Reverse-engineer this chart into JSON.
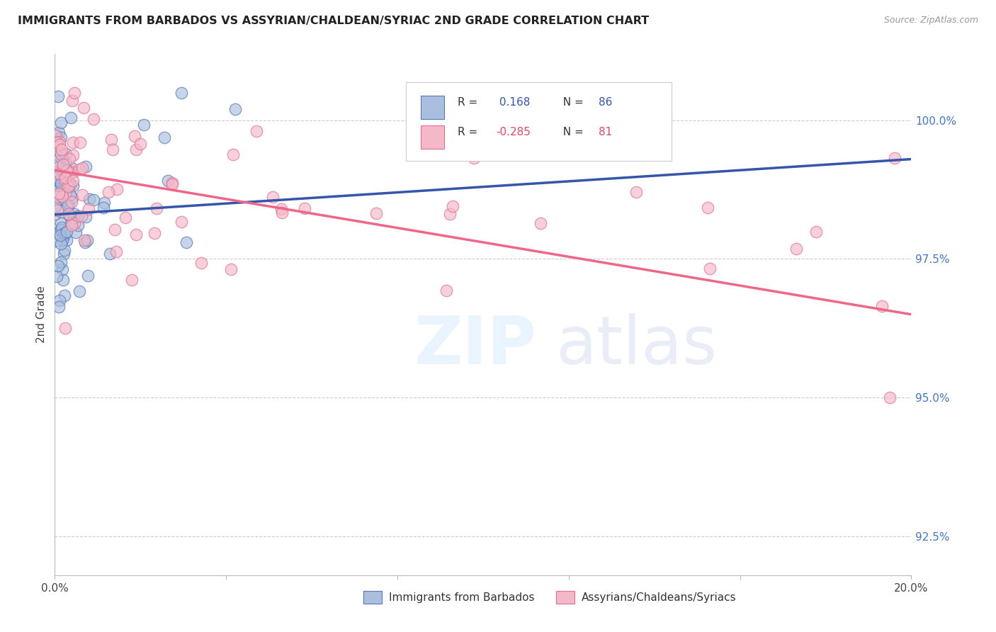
{
  "title": "IMMIGRANTS FROM BARBADOS VS ASSYRIAN/CHALDEAN/SYRIAC 2ND GRADE CORRELATION CHART",
  "source": "Source: ZipAtlas.com",
  "ylabel": "2nd Grade",
  "y_ticks": [
    92.5,
    95.0,
    97.5,
    100.0
  ],
  "y_tick_labels": [
    "92.5%",
    "95.0%",
    "97.5%",
    "100.0%"
  ],
  "xlim": [
    0.0,
    20.0
  ],
  "ylim": [
    91.8,
    101.2
  ],
  "blue_R": 0.168,
  "blue_N": 86,
  "pink_R": -0.285,
  "pink_N": 81,
  "blue_fill_color": "#aabfdd",
  "pink_fill_color": "#f4b8c8",
  "blue_edge_color": "#5577bb",
  "pink_edge_color": "#e07090",
  "blue_line_color": "#3355aa",
  "pink_line_color": "#ee6688",
  "legend_label_blue": "Immigrants from Barbados",
  "legend_label_pink": "Assyrians/Chaldeans/Syriacs",
  "blue_trend_x0": 0.0,
  "blue_trend_y0": 98.3,
  "blue_trend_x1": 20.0,
  "blue_trend_y1": 99.3,
  "pink_trend_x0": 0.0,
  "pink_trend_y0": 99.1,
  "pink_trend_x1": 20.0,
  "pink_trend_y1": 96.5
}
